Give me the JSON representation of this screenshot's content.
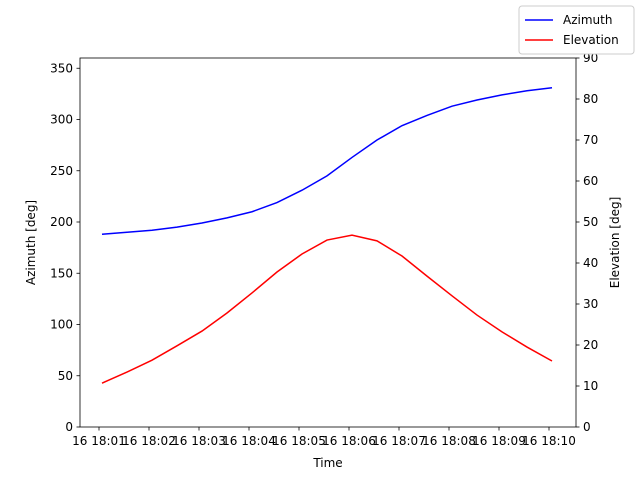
{
  "chart_data": {
    "type": "line",
    "xlabel": "Time",
    "ylabel": "Azimuth [deg]",
    "y2label": "Elevation [deg]",
    "x": [
      1.06,
      1.56,
      2.06,
      2.56,
      3.06,
      3.56,
      4.06,
      4.56,
      5.06,
      5.56,
      6.06,
      6.56,
      7.06,
      7.56,
      8.06,
      8.56,
      9.06,
      9.56,
      10.06
    ],
    "series": [
      {
        "name": "Azimuth",
        "color": "#0000ff",
        "values": [
          188,
          190,
          192,
          195,
          199,
          204,
          210,
          219,
          231,
          245,
          263,
          280,
          294,
          304,
          313,
          319,
          324,
          328,
          331
        ]
      },
      {
        "name": "Elevation",
        "color": "#ff0000",
        "axis": "y2",
        "values": [
          10.7,
          13.4,
          16.3,
          19.8,
          23.4,
          27.8,
          32.7,
          37.8,
          42.2,
          45.6,
          46.8,
          45.4,
          41.7,
          36.8,
          32,
          27.3,
          23.2,
          19.5,
          16.1
        ]
      }
    ],
    "xlim": [
      0.62,
      10.54
    ],
    "xticks": [
      {
        "value": 1,
        "label": "16 18:01"
      },
      {
        "value": 2,
        "label": "16 18:02"
      },
      {
        "value": 3,
        "label": "16 18:03"
      },
      {
        "value": 4,
        "label": "16 18:04"
      },
      {
        "value": 5,
        "label": "16 18:05"
      },
      {
        "value": 6,
        "label": "16 18:06"
      },
      {
        "value": 7,
        "label": "16 18:07"
      },
      {
        "value": 8,
        "label": "16 18:08"
      },
      {
        "value": 9,
        "label": "16 18:09"
      },
      {
        "value": 10,
        "label": "16 18:10"
      }
    ],
    "ylim": [
      0,
      360
    ],
    "yticks": [
      0,
      50,
      100,
      150,
      200,
      250,
      300,
      350
    ],
    "y2lim": [
      0,
      90
    ],
    "y2ticks": [
      0,
      10,
      20,
      30,
      40,
      50,
      60,
      70,
      80,
      90
    ],
    "legend": "upper right"
  }
}
